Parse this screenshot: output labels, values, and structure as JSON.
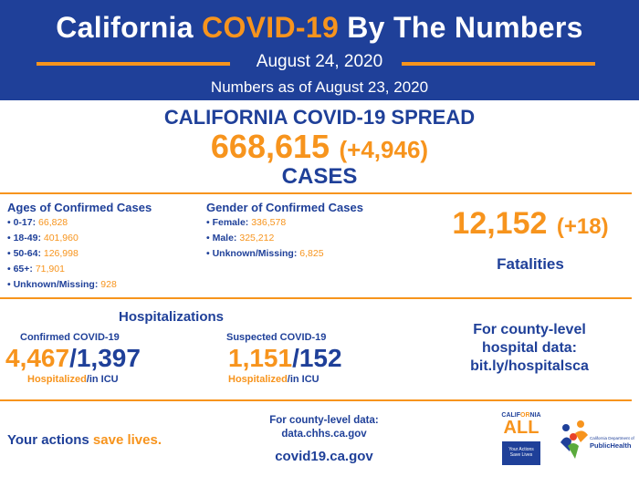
{
  "header": {
    "title_part1": "California",
    "title_accent": "COVID-19",
    "title_part2": "By The Numbers",
    "date": "August 24, 2020",
    "as_of": "Numbers as of August 23, 2020"
  },
  "spread": {
    "title": "CALIFORNIA COVID-19 SPREAD",
    "cases": "668,615",
    "cases_delta": "(+4,946)",
    "cases_label": "CASES"
  },
  "ages": {
    "title": "Ages of Confirmed Cases",
    "items": [
      {
        "label": "• 0-17:",
        "value": "66,828"
      },
      {
        "label": "• 18-49:",
        "value": "401,960"
      },
      {
        "label": "• 50-64:",
        "value": "126,998"
      },
      {
        "label": "• 65+:",
        "value": "71,901"
      },
      {
        "label": "• Unknown/Missing:",
        "value": "928"
      }
    ]
  },
  "gender": {
    "title": "Gender of Confirmed Cases",
    "items": [
      {
        "label": "• Female:",
        "value": "336,578"
      },
      {
        "label": "• Male:",
        "value": "325,212"
      },
      {
        "label": "• Unknown/Missing:",
        "value": "6,825"
      }
    ]
  },
  "fatalities": {
    "count": "12,152",
    "delta": "(+18)",
    "label": "Fatalities"
  },
  "hospitalizations": {
    "title": "Hospitalizations",
    "confirmed": {
      "label": "Confirmed COVID-19",
      "hospitalized": "4,467",
      "icu": "1,397",
      "hosp_label": "Hospitalized",
      "icu_label": "/in ICU"
    },
    "suspected": {
      "label": "Suspected COVID-19",
      "hospitalized": "1,151",
      "icu": "152",
      "hosp_label": "Hospitalized",
      "icu_label": "/in ICU"
    },
    "county_line1": "For county-level",
    "county_line2": "hospital data:",
    "county_link": "bit.ly/hospitalsca"
  },
  "footer": {
    "actions_part1": "Your actions",
    "actions_accent": "save lives.",
    "county_data_line1": "For county-level data:",
    "county_data_link": "data.chhs.ca.gov",
    "site": "covid19.ca.gov"
  },
  "logos": {
    "ca_word_part1": "CALIF",
    "ca_word_accent": "OR",
    "ca_word_part2": "NIA",
    "all": "ALL",
    "ca_box_line1": "Your Actions",
    "ca_box_line2": "Save Lives",
    "ph_small": "California Department of",
    "ph_name": "PublicHealth"
  },
  "colors": {
    "navy": "#1f4099",
    "orange": "#f7941d"
  }
}
